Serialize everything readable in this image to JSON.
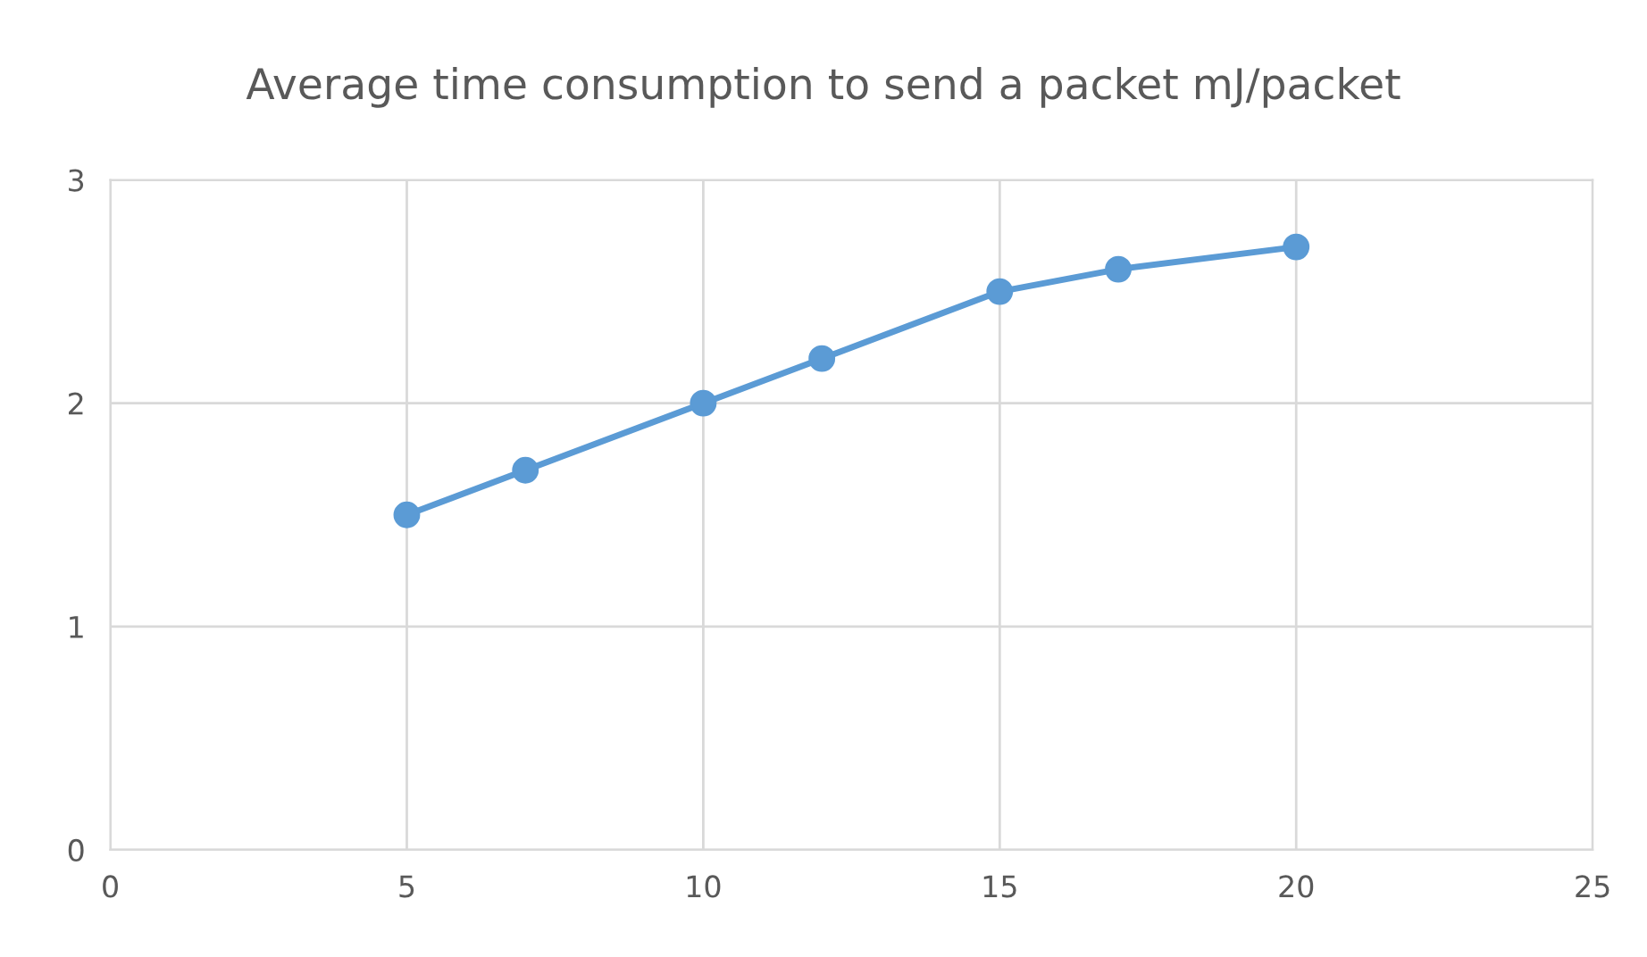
{
  "chart_data": {
    "type": "line",
    "title": "Average time consumption to send a packet mJ/packet",
    "series": [
      {
        "color": "#5b9bd5",
        "x": [
          5,
          7,
          10,
          12,
          15,
          17,
          20
        ],
        "values": [
          1.5,
          1.7,
          2.0,
          2.2,
          2.5,
          2.6,
          2.7
        ]
      }
    ],
    "xlim": [
      0,
      25
    ],
    "xticks": [
      0,
      5,
      10,
      15,
      20,
      25
    ],
    "ylim": [
      0,
      3
    ],
    "yticks": [
      0,
      1,
      2,
      3
    ],
    "grid": true,
    "marker": "circle",
    "line_style": "solid"
  }
}
